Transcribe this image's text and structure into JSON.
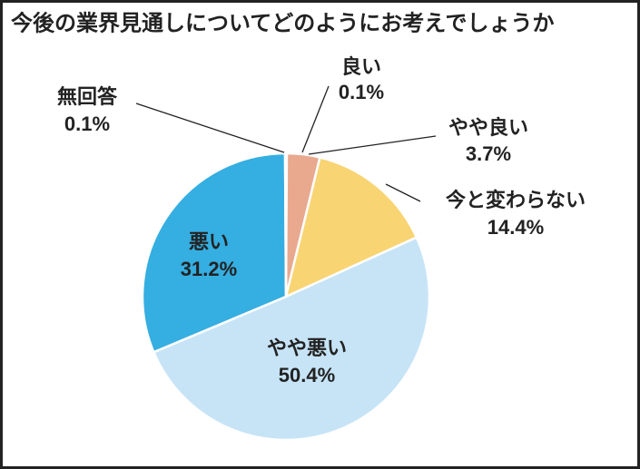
{
  "chart_data": {
    "type": "pie",
    "title": "今後の業界見通しについてどのようにお考えでしょうか",
    "categories": [
      "良い",
      "やや良い",
      "今と変わらない",
      "やや悪い",
      "悪い",
      "無回答"
    ],
    "values": [
      0.1,
      3.7,
      14.4,
      50.4,
      31.2,
      0.1
    ],
    "value_labels": [
      "0.1%",
      "3.7%",
      "14.4%",
      "50.4%",
      "31.2%",
      "0.1%"
    ],
    "colors": [
      "#e8a98f",
      "#e8a98f",
      "#f9d473",
      "#c7e4f7",
      "#35aee1",
      "#dddddd"
    ]
  }
}
